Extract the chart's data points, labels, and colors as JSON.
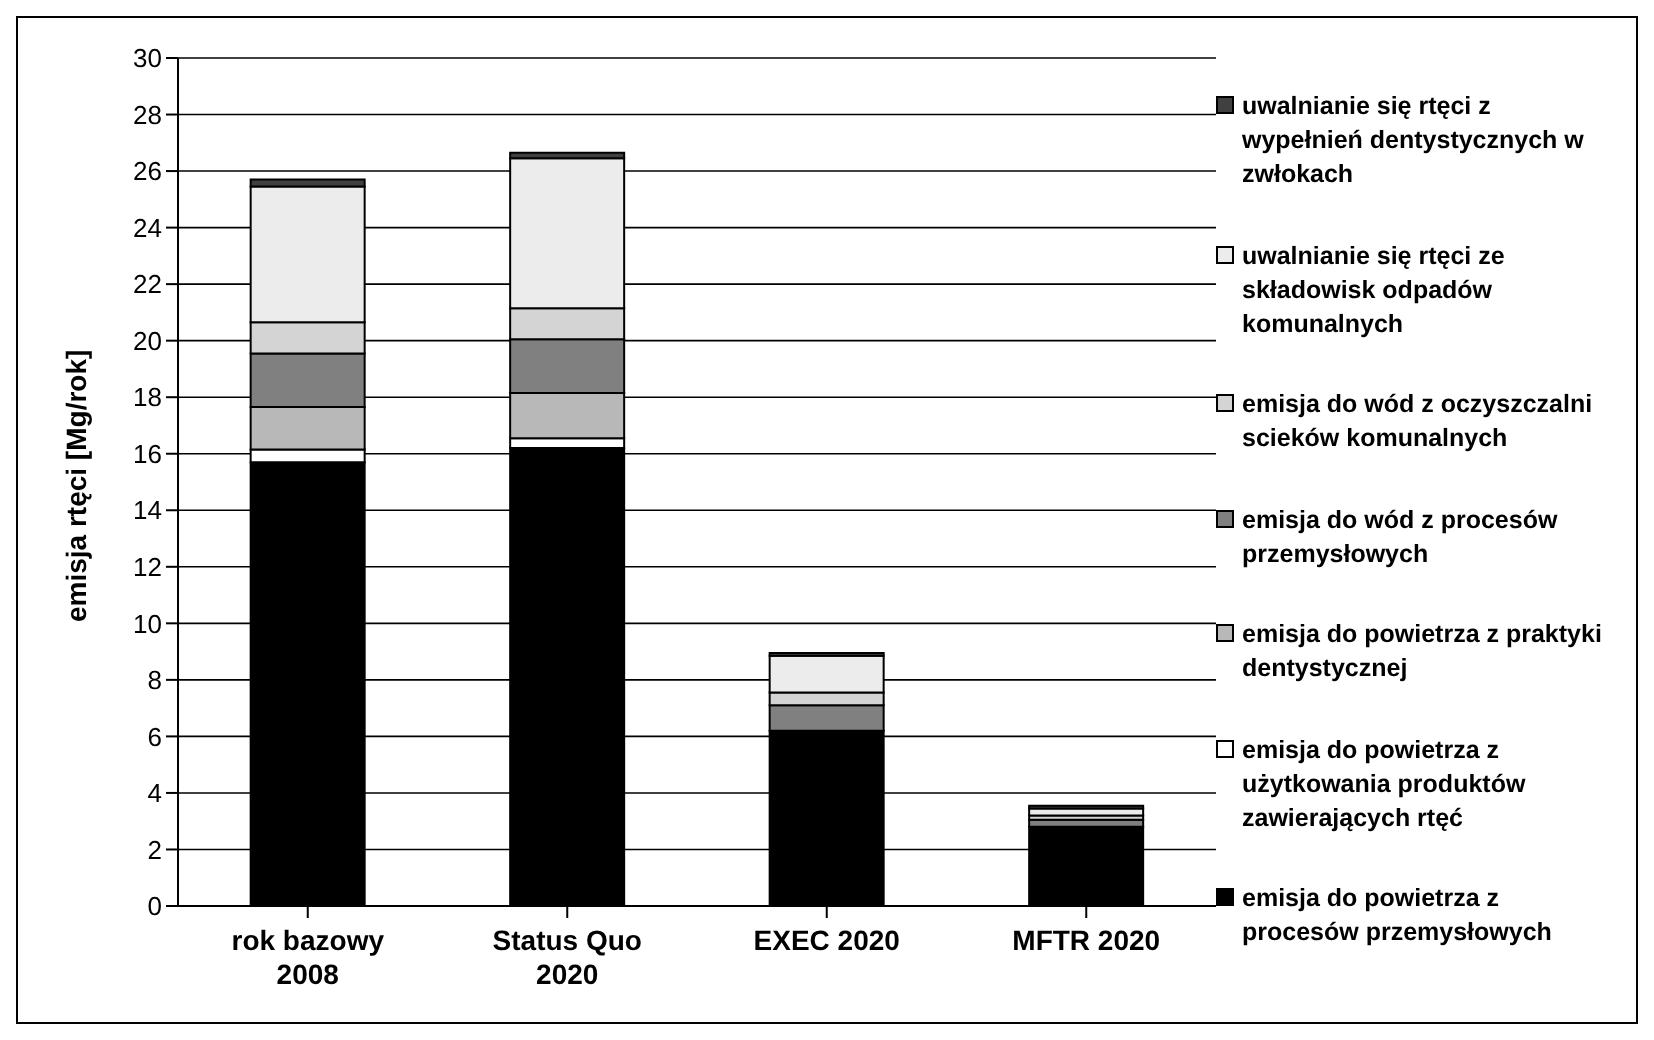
{
  "chart_data": {
    "type": "bar",
    "stacked": true,
    "ylabel": "emisja rtęci [Mg/rok]",
    "categories": [
      "rok bazowy 2008",
      "Status Quo 2020",
      "EXEC 2020",
      "MFTR 2020"
    ],
    "series": [
      {
        "name": "emisja do powietrza z procesów przemysłowych",
        "color": "#000000",
        "values": [
          15.7,
          16.2,
          6.2,
          2.8
        ]
      },
      {
        "name": "emisja do powietrza z użytkowania produktów zawierających rtęć",
        "color": "#ffffff",
        "values": [
          0.45,
          0.35,
          0,
          null
        ]
      },
      {
        "name": "emisja do powietrza z praktyki dentystycznej",
        "color": "#b8b8b8",
        "values": [
          1.5,
          1.6,
          0,
          null
        ]
      },
      {
        "name": "emisja do wód z procesów przemysłowych",
        "color": "#808080",
        "values": [
          1.9,
          1.9,
          0.9,
          0.25
        ]
      },
      {
        "name": "emisja do wód z oczyszczalni scieków komunalnych",
        "color": "#d4d4d4",
        "values": [
          1.1,
          1.1,
          0.45,
          0.15
        ]
      },
      {
        "name": "uwalnianie się rtęci ze składowisk odpadów komunalnych",
        "color": "#ececec",
        "values": [
          4.8,
          5.3,
          1.3,
          0.25
        ]
      },
      {
        "name": "uwalnianie się rtęci z wypełnień dentystycznych w zwłokach",
        "color": "#404040",
        "values": [
          0.25,
          0.2,
          0.1,
          0.1
        ]
      }
    ],
    "ylim": [
      0,
      30
    ],
    "yticks": [
      0,
      2,
      4,
      6,
      8,
      10,
      12,
      14,
      16,
      18,
      20,
      22,
      24,
      26,
      28,
      30
    ],
    "grid": "y",
    "legend": "right"
  }
}
